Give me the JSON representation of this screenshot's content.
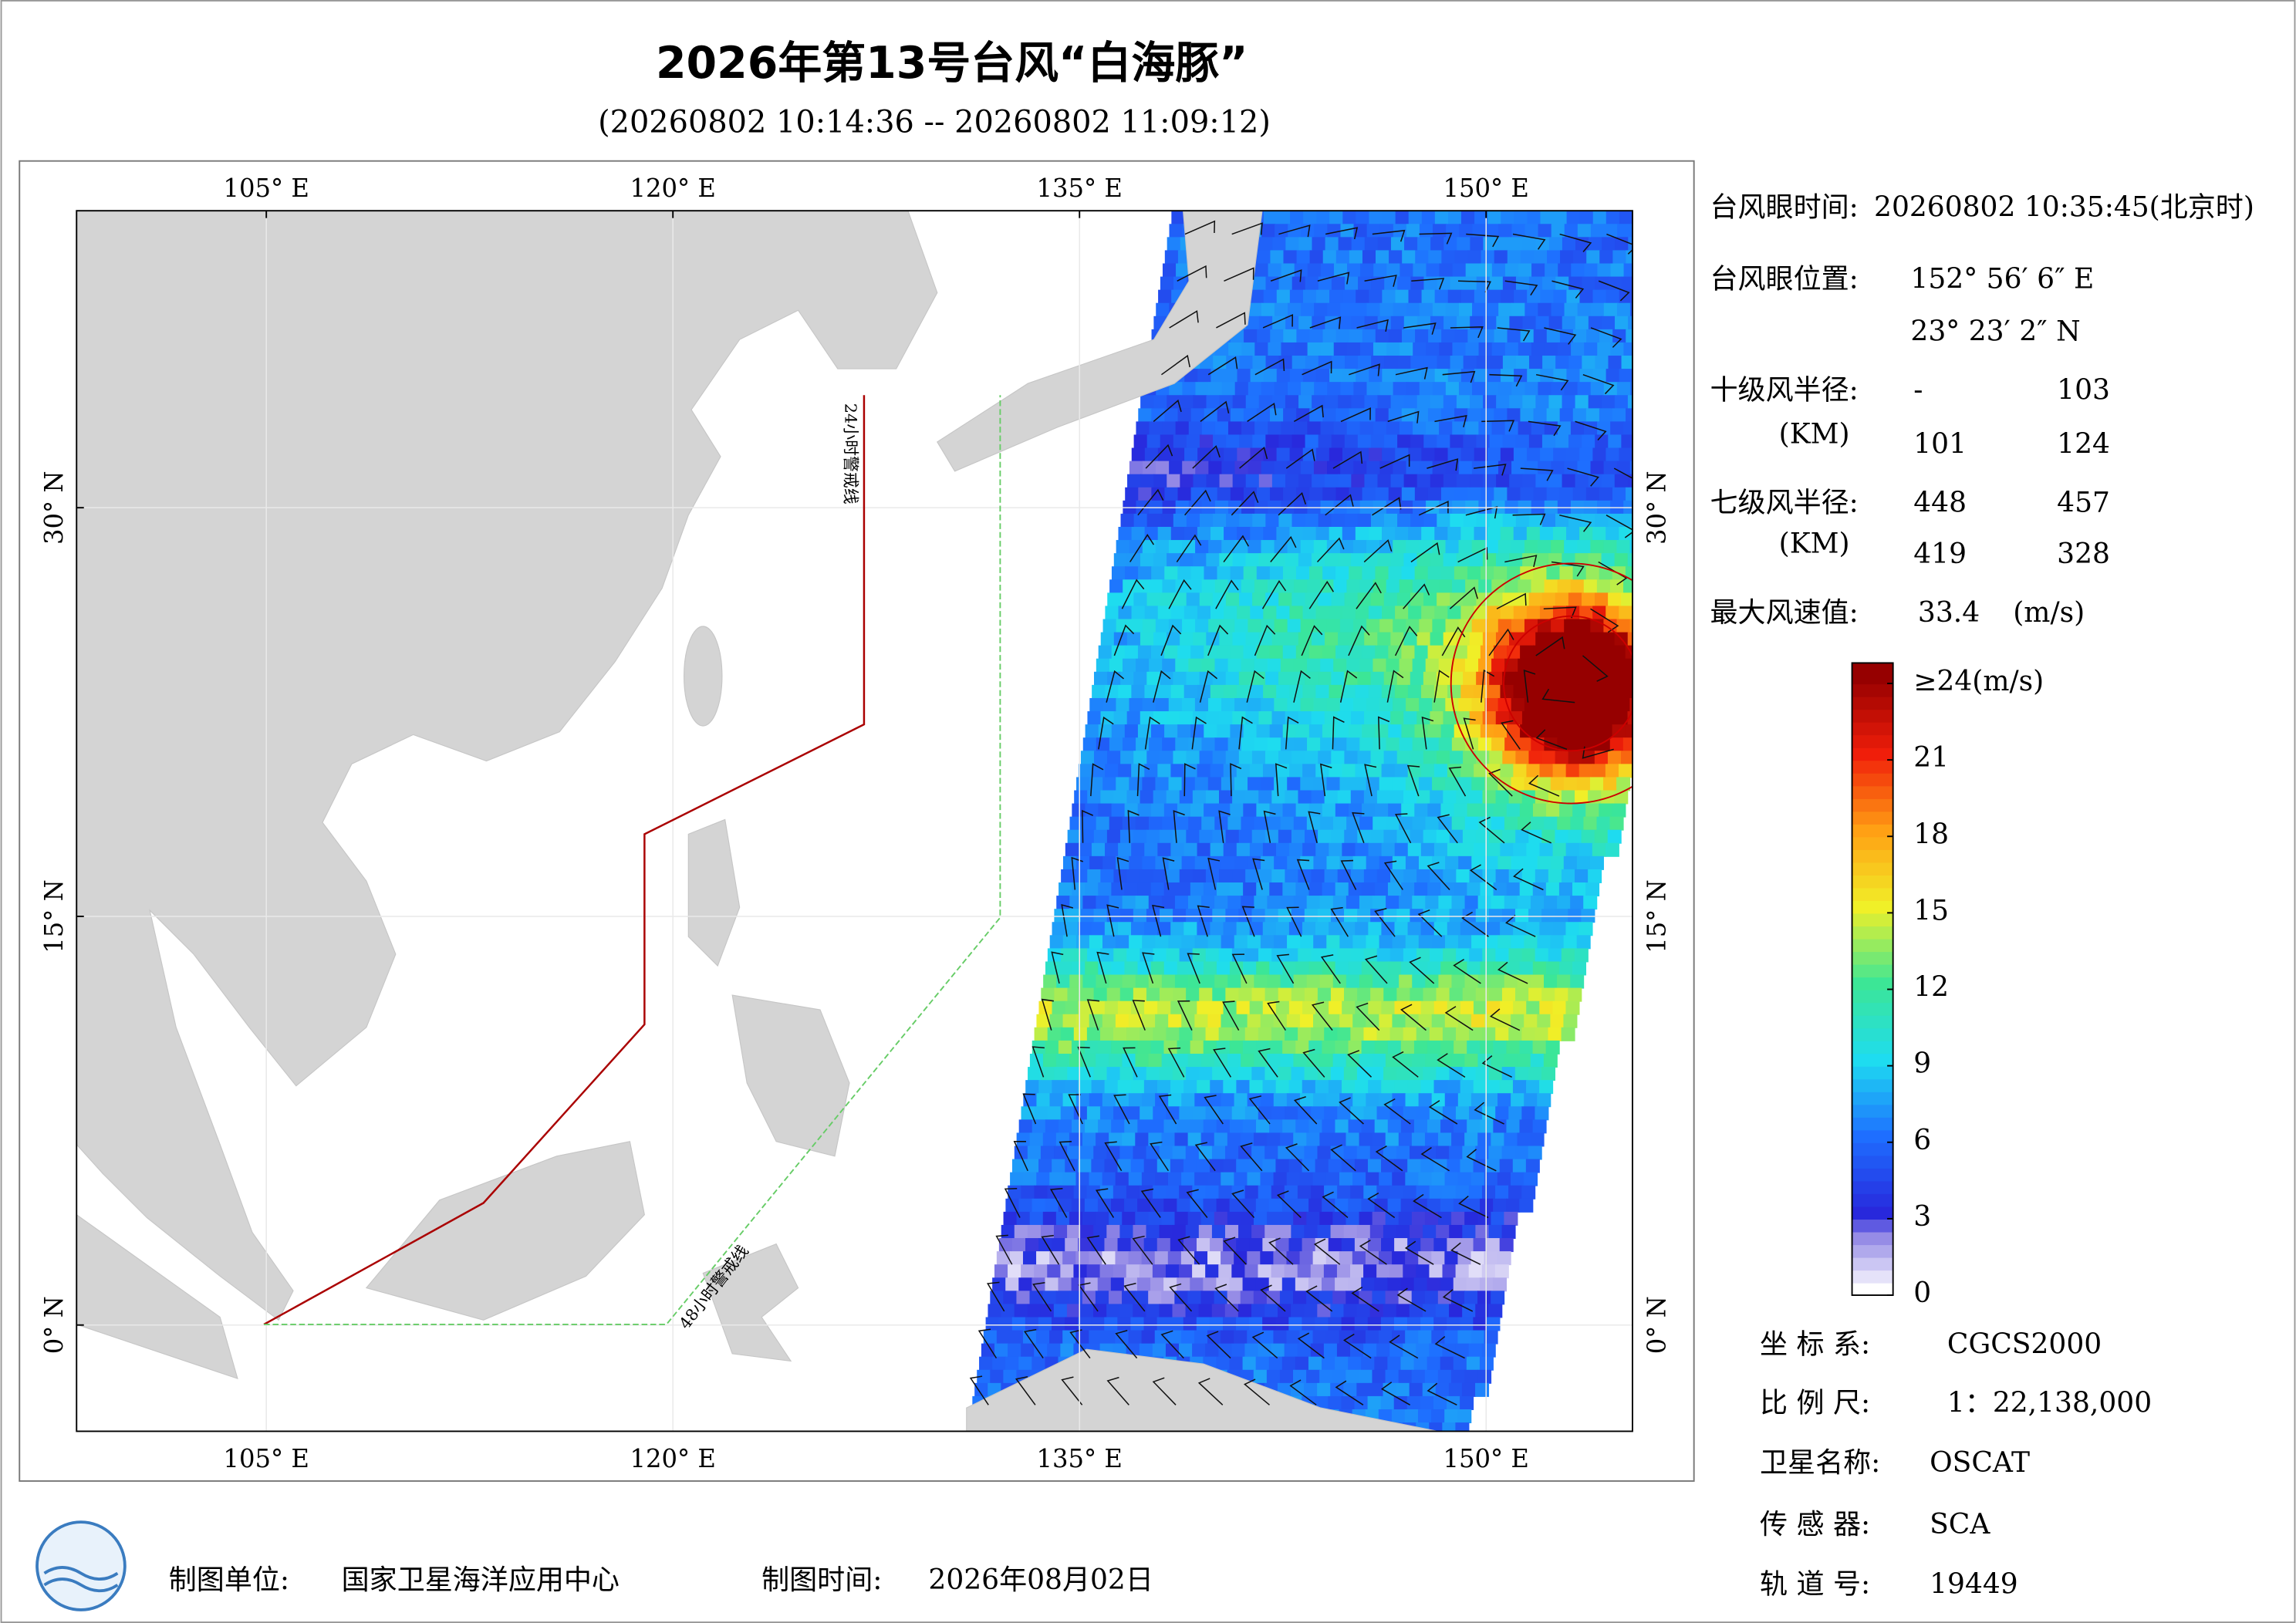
{
  "title": "2026年第13号台风“白海豚”",
  "subtitle": "(20260802 10:14:36 -- 20260802 11:09:12)",
  "map": {
    "lon_range": [
      98,
      155.4
    ],
    "lat_range": [
      -3.9,
      40.9
    ],
    "lon_ticks": [
      {
        "value": 105,
        "label": "105° E"
      },
      {
        "value": 120,
        "label": "120° E"
      },
      {
        "value": 135,
        "label": "135° E"
      },
      {
        "value": 150,
        "label": "150° E"
      }
    ],
    "lat_ticks": [
      {
        "value": 0,
        "label": "0° N"
      },
      {
        "value": 15,
        "label": "15° N"
      },
      {
        "value": 30,
        "label": "30° N"
      }
    ],
    "warning_24h": "24小时警戒线",
    "warning_48h": "48小时警戒线"
  },
  "info": {
    "eye_time_label": "台风眼时间:",
    "eye_time": "20260802 10:35:45(北京时)",
    "eye_position_label": "台风眼位置:",
    "eye_lon": "152° 56′ 6″ E",
    "eye_lat": "23° 23′ 2″ N",
    "r10_label": "十级风半径:",
    "r10_unit": "(KM)",
    "r10": [
      "-",
      103,
      101,
      124
    ],
    "r7_label": "七级风半径:",
    "r7_unit": "(KM)",
    "r7": [
      448,
      457,
      419,
      328
    ],
    "max_wind_label": "最大风速值:",
    "max_wind": 33.4,
    "max_wind_unit": "(m/s)"
  },
  "colorbar": {
    "range": [
      0,
      24
    ],
    "ticks": [
      0,
      3,
      6,
      9,
      12,
      15,
      18,
      21,
      {
        "value": 24,
        "label": "≥24(m/s)"
      }
    ]
  },
  "meta": {
    "crs_label": "坐 标 系:",
    "crs": "CGCS2000",
    "scale_label": "比 例 尺:",
    "scale": "1：22,138,000",
    "satellite_label": "卫星名称:",
    "satellite": "OSCAT",
    "sensor_label": "传 感 器:",
    "sensor": "SCA",
    "orbit_label": "轨 道 号:",
    "orbit": 19449
  },
  "footer": {
    "producer_label": "制图单位:",
    "producer": "国家卫星海洋应用中心",
    "date_label": "制图时间:",
    "date": "2026年08月02日"
  }
}
